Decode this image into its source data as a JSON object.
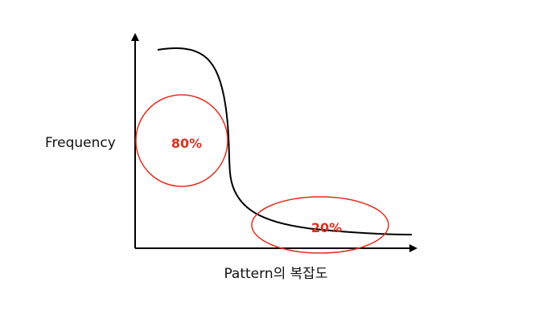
{
  "diagram": {
    "y_axis_label": "Frequency",
    "x_axis_label": "Pattern의 복잡도",
    "head_region_label": "80%",
    "tail_region_label": "20%"
  },
  "colors": {
    "axis": "#000000",
    "curve": "#000000",
    "highlight": "#e0301e",
    "text": "#111111"
  }
}
